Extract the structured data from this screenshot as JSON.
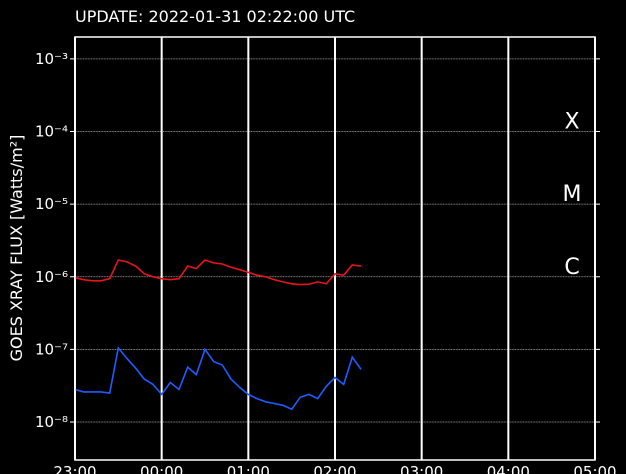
{
  "chart_data": {
    "type": "line",
    "title": "UPDATE: 2022-01-31 02:22:00 UTC",
    "y_label": "GOES XRAY FLUX [Watts/m²]",
    "log_y": true,
    "grid": true,
    "x": [
      0,
      0.1,
      0.2,
      0.3,
      0.4,
      0.5,
      0.6,
      0.7,
      0.8,
      0.9,
      1.0,
      1.1,
      1.2,
      1.3,
      1.4,
      1.5,
      1.6,
      1.7,
      1.8,
      1.9,
      2.0,
      2.1,
      2.2,
      2.3,
      2.4,
      2.5,
      2.6,
      2.7,
      2.8,
      2.9,
      3.0,
      3.1,
      3.2,
      3.3
    ],
    "series": [
      {
        "color": "#e8141c",
        "values": [
          9.7e-07,
          9.1e-07,
          8.8e-07,
          8.8e-07,
          9.4e-07,
          1.7e-06,
          1.6e-06,
          1.4e-06,
          1.1e-06,
          1e-06,
          9.4e-07,
          9.1e-07,
          9.4e-07,
          1.4e-06,
          1.3e-06,
          1.7e-06,
          1.55e-06,
          1.5e-06,
          1.35e-06,
          1.25e-06,
          1.15e-06,
          1.05e-06,
          1e-06,
          9.1e-07,
          8.5e-07,
          8e-07,
          7.8e-07,
          7.9e-07,
          8.5e-07,
          8e-07,
          1.1e-06,
          1.05e-06,
          1.45e-06,
          1.4e-06
        ]
      },
      {
        "color": "#1f5cff",
        "values": [
          2.8e-08,
          2.6e-08,
          2.6e-08,
          2.6e-08,
          2.5e-08,
          1.05e-07,
          7.5e-08,
          5.5e-08,
          3.9e-08,
          3.3e-08,
          2.4e-08,
          3.5e-08,
          2.8e-08,
          5.7e-08,
          4.5e-08,
          1e-07,
          6.8e-08,
          6.1e-08,
          3.9e-08,
          3e-08,
          2.4e-08,
          2.1e-08,
          1.9e-08,
          1.8e-08,
          1.7e-08,
          1.5e-08,
          2.2e-08,
          2.4e-08,
          2.1e-08,
          3.1e-08,
          4.1e-08,
          3.3e-08,
          7.8e-08,
          5.3e-08
        ]
      }
    ],
    "xlim": [
      0,
      6
    ],
    "xticks": [
      {
        "value": 0,
        "label": "23:00"
      },
      {
        "value": 1,
        "label": "00:00"
      },
      {
        "value": 2,
        "label": "01:00"
      },
      {
        "value": 3,
        "label": "02:00"
      },
      {
        "value": 4,
        "label": "03:00"
      },
      {
        "value": 5,
        "label": "04:00"
      },
      {
        "value": 6,
        "label": "05:00"
      }
    ],
    "ylim": [
      3e-09,
      0.002
    ],
    "yticks": [
      {
        "value": 1e-08,
        "label": "10⁻⁸"
      },
      {
        "value": 1e-07,
        "label": "10⁻⁷"
      },
      {
        "value": 1e-06,
        "label": "10⁻⁶"
      },
      {
        "value": 1e-05,
        "label": "10⁻⁵"
      },
      {
        "value": 0.0001,
        "label": "10⁻⁴"
      },
      {
        "value": 0.001,
        "label": "10⁻³"
      }
    ],
    "flare_classes": [
      {
        "label": "X",
        "value": 0.0001
      },
      {
        "label": "M",
        "value": 1e-05
      },
      {
        "label": "C",
        "value": 1e-06
      }
    ]
  }
}
